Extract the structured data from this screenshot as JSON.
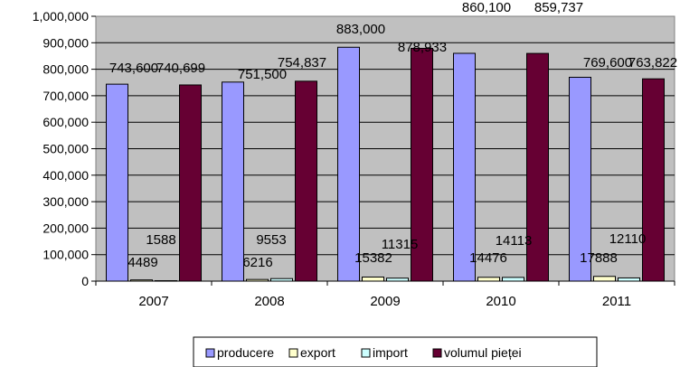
{
  "chart_data": {
    "type": "bar",
    "categories": [
      "2007",
      "2008",
      "2009",
      "2010",
      "2011"
    ],
    "series": [
      {
        "name": "producere",
        "values": [
          743600,
          751500,
          883000,
          860100,
          769600
        ],
        "labels": [
          "743,600",
          "751,500",
          "883,000",
          "860,100",
          "769,600"
        ],
        "color": "#9999ff"
      },
      {
        "name": "export",
        "values": [
          4489,
          6216,
          15382,
          14476,
          17888
        ],
        "labels": [
          "4489",
          "6216",
          "15382",
          "14476",
          "17888"
        ],
        "color": "#ffffcc"
      },
      {
        "name": "import",
        "values": [
          1588,
          9553,
          11315,
          14113,
          12110
        ],
        "labels": [
          "1588",
          "9553",
          "11315",
          "14113",
          "12110"
        ],
        "color": "#ccffff"
      },
      {
        "name": "volumul pieței",
        "values": [
          740699,
          754837,
          878933,
          859737,
          763822
        ],
        "labels": [
          "740,699",
          "754,837",
          "878,933",
          "859,737",
          "763,822"
        ],
        "color": "#660033"
      }
    ],
    "yticks": [
      "0",
      "100,000",
      "200,000",
      "300,000",
      "400,000",
      "500,000",
      "600,000",
      "700,000",
      "800,000",
      "900,000",
      "1,000,000"
    ],
    "ylim": [
      0,
      1000000
    ],
    "grid": true,
    "legend_position": "bottom",
    "plot_background": "#c0c0c0",
    "title": "",
    "xlabel": "",
    "ylabel": ""
  }
}
